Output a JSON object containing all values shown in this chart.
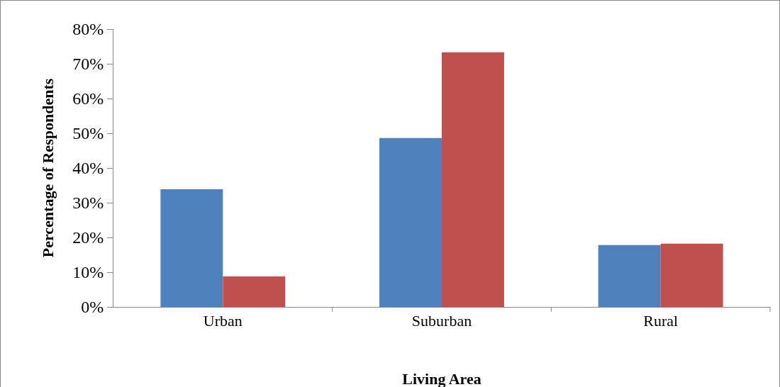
{
  "chart_data": {
    "type": "bar",
    "xlabel": "Living Area",
    "ylabel": "Percentage of Respondents",
    "categories": [
      "Urban",
      "Suburban",
      "Rural"
    ],
    "series": [
      {
        "color": "#4f81bd",
        "values": [
          33.9,
          48.6,
          17.8
        ]
      },
      {
        "color": "#c0504d",
        "values": [
          8.8,
          73.3,
          18.2
        ]
      }
    ],
    "ylim": [
      0,
      80
    ],
    "yticks": [
      {
        "value": 0,
        "label": "0%"
      },
      {
        "value": 10,
        "label": "10%"
      },
      {
        "value": 20,
        "label": "20%"
      },
      {
        "value": 30,
        "label": "30%"
      },
      {
        "value": 40,
        "label": "40%"
      },
      {
        "value": 50,
        "label": "50%"
      },
      {
        "value": 60,
        "label": "60%"
      },
      {
        "value": 70,
        "label": "70%"
      },
      {
        "value": 80,
        "label": "80%"
      }
    ],
    "grid": false
  }
}
